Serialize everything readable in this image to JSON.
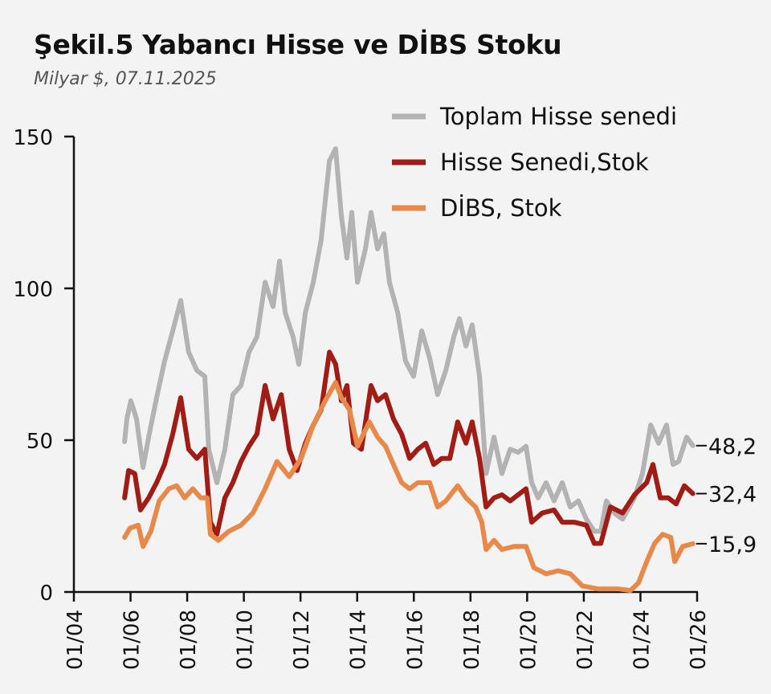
{
  "chart_data": {
    "type": "line",
    "title": "Şekil.5 Yabancı Hisse ve DİBS Stoku",
    "subtitle": "Milyar $, 07.11.2025",
    "xlabel": "",
    "ylabel": "",
    "xlim": [
      2004,
      2026
    ],
    "ylim": [
      0,
      150
    ],
    "yticks": [
      0,
      50,
      100,
      150
    ],
    "ytick_labels": [
      "0",
      "50",
      "100",
      "150"
    ],
    "xticks": [
      2004,
      2006,
      2008,
      2010,
      2012,
      2014,
      2016,
      2018,
      2020,
      2022,
      2024,
      2026
    ],
    "xtick_labels": [
      "01/04",
      "01/06",
      "01/08",
      "01/10",
      "01/12",
      "01/14",
      "01/16",
      "01/18",
      "01/20",
      "01/22",
      "01/24",
      "01/26"
    ],
    "grid": false,
    "legend_position": "top-right",
    "series": [
      {
        "name": "Toplam Hisse senedi",
        "color": "#b3b3b3",
        "end_label": "48,2",
        "points": [
          [
            2005.79,
            49.5
          ],
          [
            2005.87,
            57
          ],
          [
            2006.01,
            63
          ],
          [
            2006.21,
            57
          ],
          [
            2006.44,
            41
          ],
          [
            2006.64,
            51
          ],
          [
            2006.92,
            64
          ],
          [
            2007.2,
            76
          ],
          [
            2007.49,
            86
          ],
          [
            2007.77,
            96
          ],
          [
            2008.05,
            79
          ],
          [
            2008.34,
            73
          ],
          [
            2008.62,
            71
          ],
          [
            2008.76,
            47
          ],
          [
            2009.05,
            36
          ],
          [
            2009.33,
            47
          ],
          [
            2009.61,
            65
          ],
          [
            2009.9,
            68
          ],
          [
            2010.18,
            79
          ],
          [
            2010.46,
            84
          ],
          [
            2010.75,
            102
          ],
          [
            2011.03,
            94
          ],
          [
            2011.26,
            109
          ],
          [
            2011.46,
            92
          ],
          [
            2011.74,
            84
          ],
          [
            2011.94,
            75
          ],
          [
            2012.17,
            92
          ],
          [
            2012.45,
            102
          ],
          [
            2012.73,
            116
          ],
          [
            2013.02,
            142
          ],
          [
            2013.24,
            146
          ],
          [
            2013.44,
            124
          ],
          [
            2013.64,
            110
          ],
          [
            2013.81,
            125
          ],
          [
            2014.01,
            102
          ],
          [
            2014.29,
            113
          ],
          [
            2014.49,
            125
          ],
          [
            2014.72,
            113
          ],
          [
            2014.94,
            118
          ],
          [
            2015.14,
            102
          ],
          [
            2015.43,
            92
          ],
          [
            2015.71,
            76
          ],
          [
            2015.99,
            71
          ],
          [
            2016.28,
            86
          ],
          [
            2016.56,
            77
          ],
          [
            2016.84,
            65
          ],
          [
            2017.13,
            73
          ],
          [
            2017.41,
            84
          ],
          [
            2017.61,
            90
          ],
          [
            2017.84,
            81
          ],
          [
            2018.06,
            88
          ],
          [
            2018.32,
            71
          ],
          [
            2018.55,
            39
          ],
          [
            2018.83,
            51
          ],
          [
            2019.11,
            39
          ],
          [
            2019.4,
            47
          ],
          [
            2019.68,
            46
          ],
          [
            2019.96,
            48
          ],
          [
            2020.16,
            36
          ],
          [
            2020.39,
            31
          ],
          [
            2020.67,
            36
          ],
          [
            2020.95,
            30
          ],
          [
            2021.24,
            36
          ],
          [
            2021.52,
            28
          ],
          [
            2021.81,
            30
          ],
          [
            2022.09,
            24
          ],
          [
            2022.37,
            20
          ],
          [
            2022.6,
            20
          ],
          [
            2022.8,
            30
          ],
          [
            2023.08,
            26
          ],
          [
            2023.37,
            24
          ],
          [
            2023.79,
            31
          ],
          [
            2024.07,
            39
          ],
          [
            2024.36,
            55
          ],
          [
            2024.64,
            49
          ],
          [
            2024.92,
            55
          ],
          [
            2025.15,
            42
          ],
          [
            2025.35,
            43
          ],
          [
            2025.63,
            51
          ],
          [
            2025.85,
            48.2
          ]
        ]
      },
      {
        "name": "Hisse Senedi,Stok",
        "color": "#a01c14",
        "end_label": "32,4",
        "points": [
          [
            2005.79,
            31
          ],
          [
            2005.93,
            40
          ],
          [
            2006.15,
            39
          ],
          [
            2006.35,
            27
          ],
          [
            2006.64,
            31
          ],
          [
            2006.92,
            36
          ],
          [
            2007.2,
            42
          ],
          [
            2007.49,
            52
          ],
          [
            2007.77,
            64
          ],
          [
            2008.05,
            47
          ],
          [
            2008.34,
            44
          ],
          [
            2008.62,
            47
          ],
          [
            2008.82,
            23
          ],
          [
            2009.05,
            19
          ],
          [
            2009.33,
            31
          ],
          [
            2009.61,
            36
          ],
          [
            2009.9,
            43
          ],
          [
            2010.18,
            48
          ],
          [
            2010.46,
            52
          ],
          [
            2010.75,
            68
          ],
          [
            2011.03,
            57
          ],
          [
            2011.32,
            65
          ],
          [
            2011.6,
            47
          ],
          [
            2011.88,
            40
          ],
          [
            2012.17,
            49
          ],
          [
            2012.45,
            55
          ],
          [
            2012.73,
            60
          ],
          [
            2013.02,
            79
          ],
          [
            2013.24,
            75
          ],
          [
            2013.44,
            63
          ],
          [
            2013.64,
            68
          ],
          [
            2013.87,
            49
          ],
          [
            2014.15,
            47
          ],
          [
            2014.49,
            68
          ],
          [
            2014.72,
            63
          ],
          [
            2015.0,
            65
          ],
          [
            2015.28,
            57
          ],
          [
            2015.57,
            52
          ],
          [
            2015.85,
            44
          ],
          [
            2016.14,
            47
          ],
          [
            2016.42,
            49
          ],
          [
            2016.7,
            42
          ],
          [
            2016.99,
            44
          ],
          [
            2017.27,
            44
          ],
          [
            2017.55,
            56
          ],
          [
            2017.84,
            49
          ],
          [
            2018.06,
            56
          ],
          [
            2018.32,
            44
          ],
          [
            2018.55,
            28
          ],
          [
            2018.83,
            31
          ],
          [
            2019.11,
            32
          ],
          [
            2019.4,
            30
          ],
          [
            2019.68,
            32
          ],
          [
            2019.96,
            34
          ],
          [
            2020.16,
            23
          ],
          [
            2020.53,
            26
          ],
          [
            2020.95,
            27
          ],
          [
            2021.24,
            23
          ],
          [
            2021.66,
            23
          ],
          [
            2022.09,
            22
          ],
          [
            2022.37,
            16
          ],
          [
            2022.6,
            16
          ],
          [
            2022.94,
            28
          ],
          [
            2023.37,
            26
          ],
          [
            2023.79,
            32
          ],
          [
            2024.22,
            36
          ],
          [
            2024.44,
            42
          ],
          [
            2024.7,
            31
          ],
          [
            2024.98,
            31
          ],
          [
            2025.26,
            29
          ],
          [
            2025.55,
            35
          ],
          [
            2025.85,
            32.4
          ]
        ]
      },
      {
        "name": "DİBS, Stok",
        "color": "#e8894a",
        "end_label": "15,9",
        "points": [
          [
            2005.79,
            18
          ],
          [
            2005.98,
            21
          ],
          [
            2006.27,
            22
          ],
          [
            2006.44,
            15
          ],
          [
            2006.72,
            20
          ],
          [
            2007.01,
            30
          ],
          [
            2007.35,
            34
          ],
          [
            2007.63,
            35
          ],
          [
            2007.91,
            31
          ],
          [
            2008.2,
            34
          ],
          [
            2008.48,
            31
          ],
          [
            2008.71,
            31
          ],
          [
            2008.82,
            19
          ],
          [
            2009.1,
            17
          ],
          [
            2009.47,
            20
          ],
          [
            2009.9,
            22
          ],
          [
            2010.32,
            26
          ],
          [
            2010.75,
            34
          ],
          [
            2011.17,
            43
          ],
          [
            2011.6,
            38
          ],
          [
            2012.02,
            44
          ],
          [
            2012.45,
            55
          ],
          [
            2012.87,
            63
          ],
          [
            2013.24,
            69
          ],
          [
            2013.44,
            64
          ],
          [
            2013.73,
            60
          ],
          [
            2014.01,
            48
          ],
          [
            2014.43,
            56
          ],
          [
            2014.72,
            51
          ],
          [
            2015.0,
            48
          ],
          [
            2015.28,
            42
          ],
          [
            2015.57,
            36
          ],
          [
            2015.85,
            34
          ],
          [
            2016.14,
            36
          ],
          [
            2016.56,
            36
          ],
          [
            2016.84,
            28
          ],
          [
            2017.13,
            30
          ],
          [
            2017.55,
            35
          ],
          [
            2017.84,
            31
          ],
          [
            2018.18,
            28
          ],
          [
            2018.4,
            23
          ],
          [
            2018.55,
            14
          ],
          [
            2018.83,
            17
          ],
          [
            2019.11,
            14
          ],
          [
            2019.54,
            15
          ],
          [
            2019.96,
            15
          ],
          [
            2020.24,
            8
          ],
          [
            2020.67,
            6
          ],
          [
            2021.1,
            7
          ],
          [
            2021.52,
            6
          ],
          [
            2021.95,
            2
          ],
          [
            2022.51,
            1
          ],
          [
            2023.22,
            1
          ],
          [
            2023.65,
            0.5
          ],
          [
            2023.93,
            3
          ],
          [
            2024.22,
            10
          ],
          [
            2024.5,
            16
          ],
          [
            2024.78,
            19
          ],
          [
            2025.07,
            18
          ],
          [
            2025.21,
            10
          ],
          [
            2025.49,
            15
          ],
          [
            2025.85,
            15.9
          ]
        ]
      }
    ]
  }
}
